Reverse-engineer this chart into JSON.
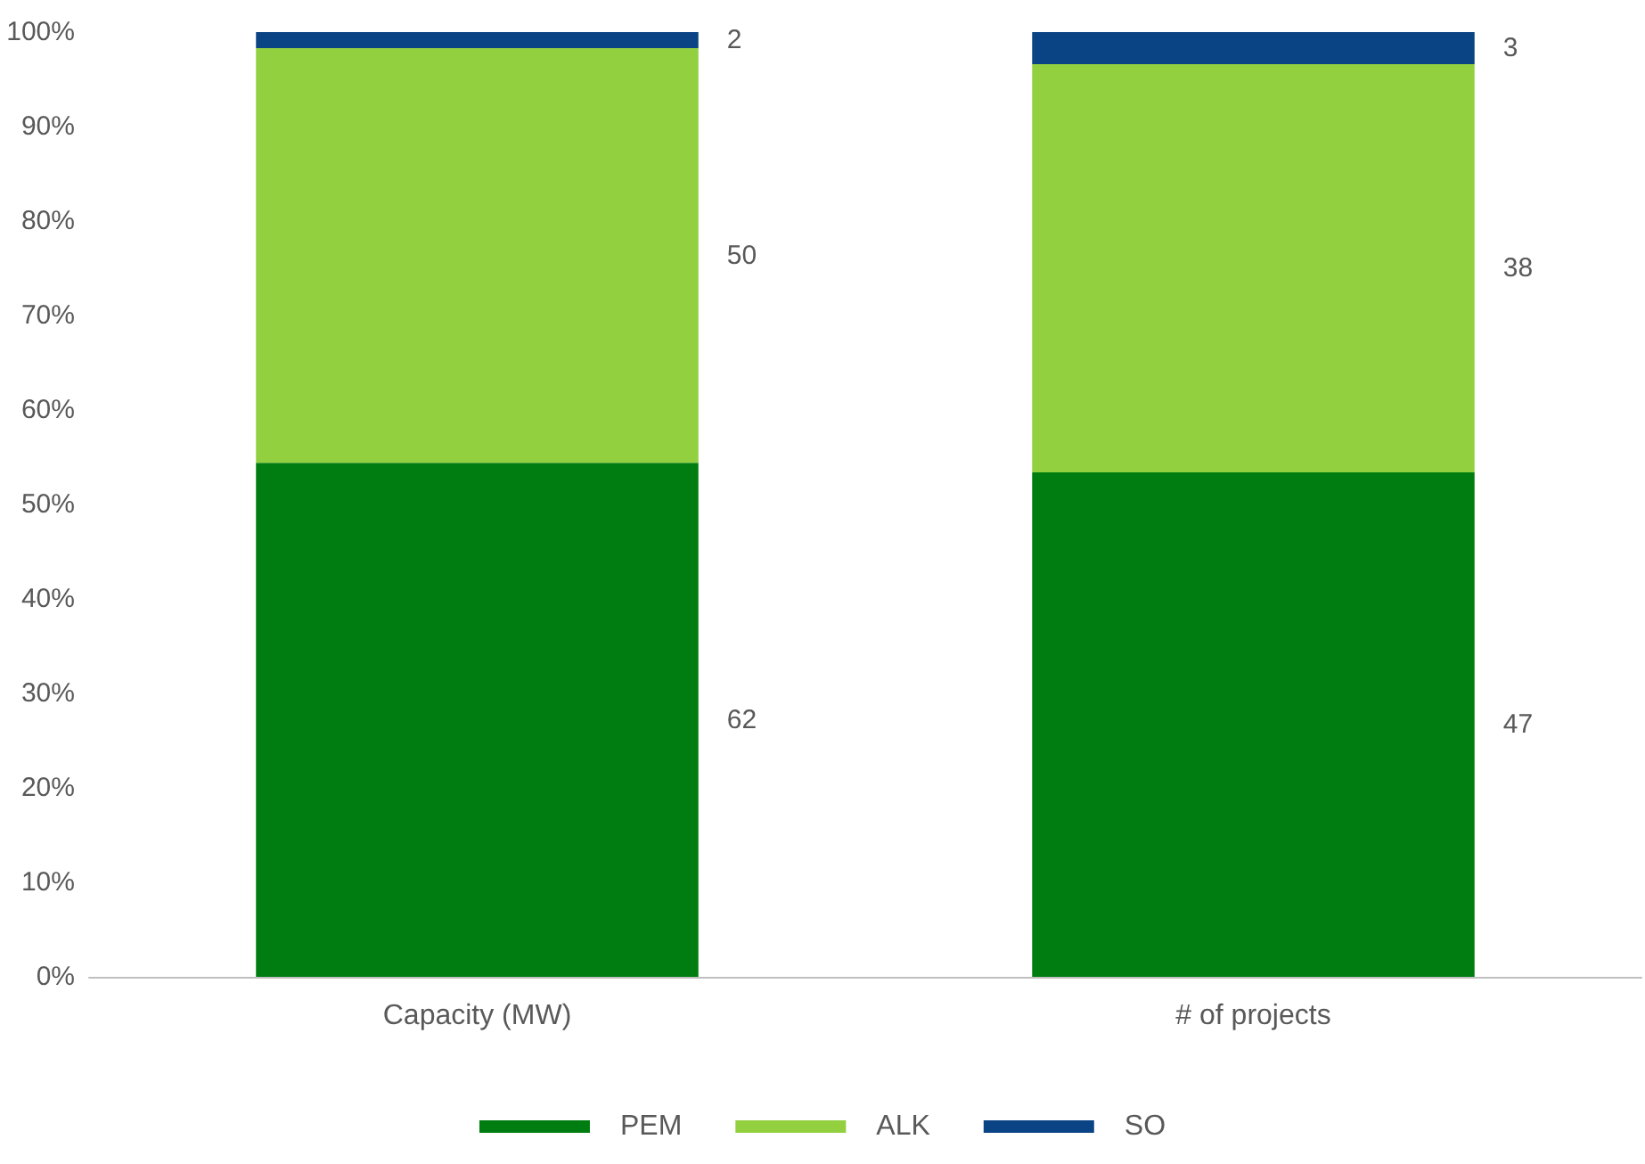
{
  "chart_data": {
    "type": "bar",
    "stacked": true,
    "categories": [
      "Capacity (MW)",
      "# of projects"
    ],
    "series": [
      {
        "name": "PEM",
        "color": "#007d10",
        "values": [
          54.4,
          53.4
        ]
      },
      {
        "name": "ALK",
        "color": "#92d03f",
        "values": [
          43.9,
          43.2
        ]
      },
      {
        "name": "SO",
        "color": "#0b4484",
        "values": [
          1.7,
          3.4
        ]
      }
    ],
    "annotations": [
      "62",
      "50",
      "2",
      "47",
      "38",
      "3"
    ],
    "ylim": [
      0,
      100
    ],
    "yticks": [
      {
        "value": 0,
        "label": "0%"
      },
      {
        "value": 10,
        "label": "10%"
      },
      {
        "value": 20,
        "label": "20%"
      },
      {
        "value": 30,
        "label": "30%"
      },
      {
        "value": 40,
        "label": "40%"
      },
      {
        "value": 50,
        "label": "50%"
      },
      {
        "value": 60,
        "label": "60%"
      },
      {
        "value": 70,
        "label": "70%"
      },
      {
        "value": 80,
        "label": "80%"
      },
      {
        "value": 90,
        "label": "90%"
      },
      {
        "value": 100,
        "label": "100%"
      }
    ],
    "grid": false,
    "legend": "bottom"
  }
}
